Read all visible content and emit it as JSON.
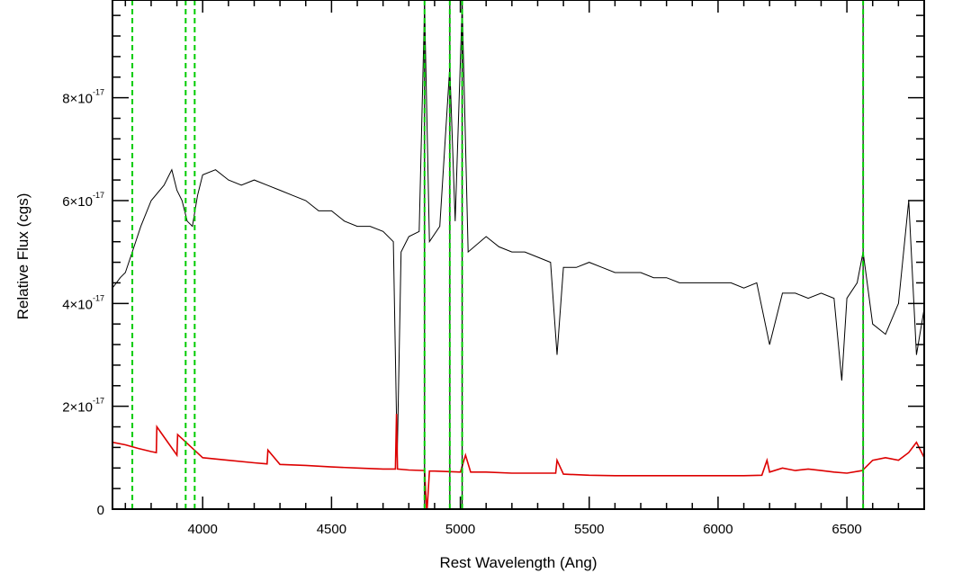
{
  "chart_data": {
    "type": "line",
    "title": "",
    "xlabel": "Rest Wavelength (Ang)",
    "ylabel": "Relative Flux (cgs)",
    "xlim": [
      3650,
      6800
    ],
    "ylim": [
      0,
      9.9e-17
    ],
    "x_ticks": [
      {
        "value": 4000,
        "label": "4000"
      },
      {
        "value": 4500,
        "label": "4500"
      },
      {
        "value": 5000,
        "label": "5000"
      },
      {
        "value": 5500,
        "label": "5500"
      },
      {
        "value": 6000,
        "label": "6000"
      },
      {
        "value": 6500,
        "label": "6500"
      }
    ],
    "y_ticks": [
      {
        "value": 0,
        "mant": "0",
        "exp": ""
      },
      {
        "value": 2e-17,
        "mant": "2×10",
        "exp": "-17"
      },
      {
        "value": 4e-17,
        "mant": "4×10",
        "exp": "-17"
      },
      {
        "value": 6e-17,
        "mant": "6×10",
        "exp": "-17"
      },
      {
        "value": 8e-17,
        "mant": "8×10",
        "exp": "-17"
      }
    ],
    "series": [
      {
        "color": "#000000",
        "x": [
          3650,
          3680,
          3700,
          3727,
          3760,
          3800,
          3850,
          3880,
          3900,
          3920,
          3940,
          3960,
          3980,
          4000,
          4050,
          4100,
          4150,
          4200,
          4250,
          4300,
          4350,
          4400,
          4450,
          4500,
          4550,
          4600,
          4650,
          4700,
          4740,
          4755,
          4770,
          4800,
          4840,
          4861,
          4880,
          4920,
          4959,
          4980,
          5007,
          5030,
          5100,
          5150,
          5200,
          5250,
          5300,
          5350,
          5375,
          5400,
          5450,
          5500,
          5550,
          5600,
          5650,
          5700,
          5750,
          5800,
          5850,
          5900,
          5950,
          6000,
          6050,
          6100,
          6150,
          6200,
          6250,
          6300,
          6350,
          6400,
          6450,
          6480,
          6500,
          6540,
          6563,
          6600,
          6650,
          6700,
          6740,
          6770,
          6800
        ],
        "y": [
          4.3e-17,
          4.5e-17,
          4.6e-17,
          5e-17,
          5.5e-17,
          6e-17,
          6.3e-17,
          6.6e-17,
          6.2e-17,
          6e-17,
          5.6e-17,
          5.5e-17,
          6.1e-17,
          6.5e-17,
          6.6e-17,
          6.4e-17,
          6.3e-17,
          6.4e-17,
          6.3e-17,
          6.2e-17,
          6.1e-17,
          6e-17,
          5.8e-17,
          5.8e-17,
          5.6e-17,
          5.5e-17,
          5.5e-17,
          5.4e-17,
          5.2e-17,
          1e-17,
          5e-17,
          5.3e-17,
          5.4e-17,
          9.8e-17,
          5.2e-17,
          5.5e-17,
          8.6e-17,
          5.6e-17,
          9.8e-17,
          5e-17,
          5.3e-17,
          5.1e-17,
          5e-17,
          5e-17,
          4.9e-17,
          4.8e-17,
          3e-17,
          4.7e-17,
          4.7e-17,
          4.8e-17,
          4.7e-17,
          4.6e-17,
          4.6e-17,
          4.6e-17,
          4.5e-17,
          4.5e-17,
          4.4e-17,
          4.4e-17,
          4.4e-17,
          4.4e-17,
          4.4e-17,
          4.3e-17,
          4.4e-17,
          3.2e-17,
          4.2e-17,
          4.2e-17,
          4.1e-17,
          4.2e-17,
          4.1e-17,
          2.5e-17,
          4.1e-17,
          4.4e-17,
          5e-17,
          3.6e-17,
          3.4e-17,
          4e-17,
          6e-17,
          3e-17,
          3.9e-17
        ]
      },
      {
        "color": "#dd0000",
        "x": [
          3650,
          3700,
          3750,
          3800,
          3820,
          3822,
          3900,
          3903,
          4000,
          4100,
          4200,
          4250,
          4253,
          4300,
          4400,
          4500,
          4600,
          4700,
          4748,
          4752,
          4756,
          4800,
          4861,
          4870,
          4880,
          4900,
          5000,
          5020,
          5040,
          5100,
          5200,
          5300,
          5370,
          5375,
          5400,
          5500,
          5600,
          5700,
          5800,
          5900,
          6000,
          6100,
          6170,
          6190,
          6200,
          6250,
          6300,
          6350,
          6400,
          6450,
          6500,
          6560,
          6600,
          6650,
          6700,
          6740,
          6770,
          6800
        ],
        "y": [
          1.3e-17,
          1.25e-17,
          1.18e-17,
          1.12e-17,
          1.1e-17,
          1.6e-17,
          1.05e-17,
          1.45e-17,
          1e-17,
          9.5e-18,
          9e-18,
          8.8e-18,
          1.15e-17,
          8.7e-18,
          8.5e-18,
          8.2e-18,
          8e-18,
          7.8e-18,
          7.8e-18,
          1.85e-17,
          7.8e-18,
          7.6e-18,
          7.5e-18,
          -1e-18,
          7.4e-18,
          7.4e-18,
          7.2e-18,
          1.05e-17,
          7.2e-18,
          7.2e-18,
          7e-18,
          7e-18,
          7e-18,
          9.5e-18,
          6.8e-18,
          6.6e-18,
          6.5e-18,
          6.5e-18,
          6.5e-18,
          6.5e-18,
          6.5e-18,
          6.5e-18,
          6.6e-18,
          9.5e-18,
          7.2e-18,
          8e-18,
          7.5e-18,
          7.8e-18,
          7.5e-18,
          7.2e-18,
          7e-18,
          7.5e-18,
          9.5e-18,
          1e-17,
          9.5e-18,
          1.1e-17,
          1.3e-17,
          1e-17
        ]
      }
    ],
    "vlines_solid": [
      4861,
      4959,
      5007,
      6563
    ],
    "vlines_dashed": [
      3727,
      3934,
      3969,
      4861,
      4959,
      5007,
      6563
    ],
    "colors": {
      "spectrum": "#000000",
      "error": "#dd0000",
      "lines": "#00cc00",
      "axis": "#000000"
    }
  }
}
